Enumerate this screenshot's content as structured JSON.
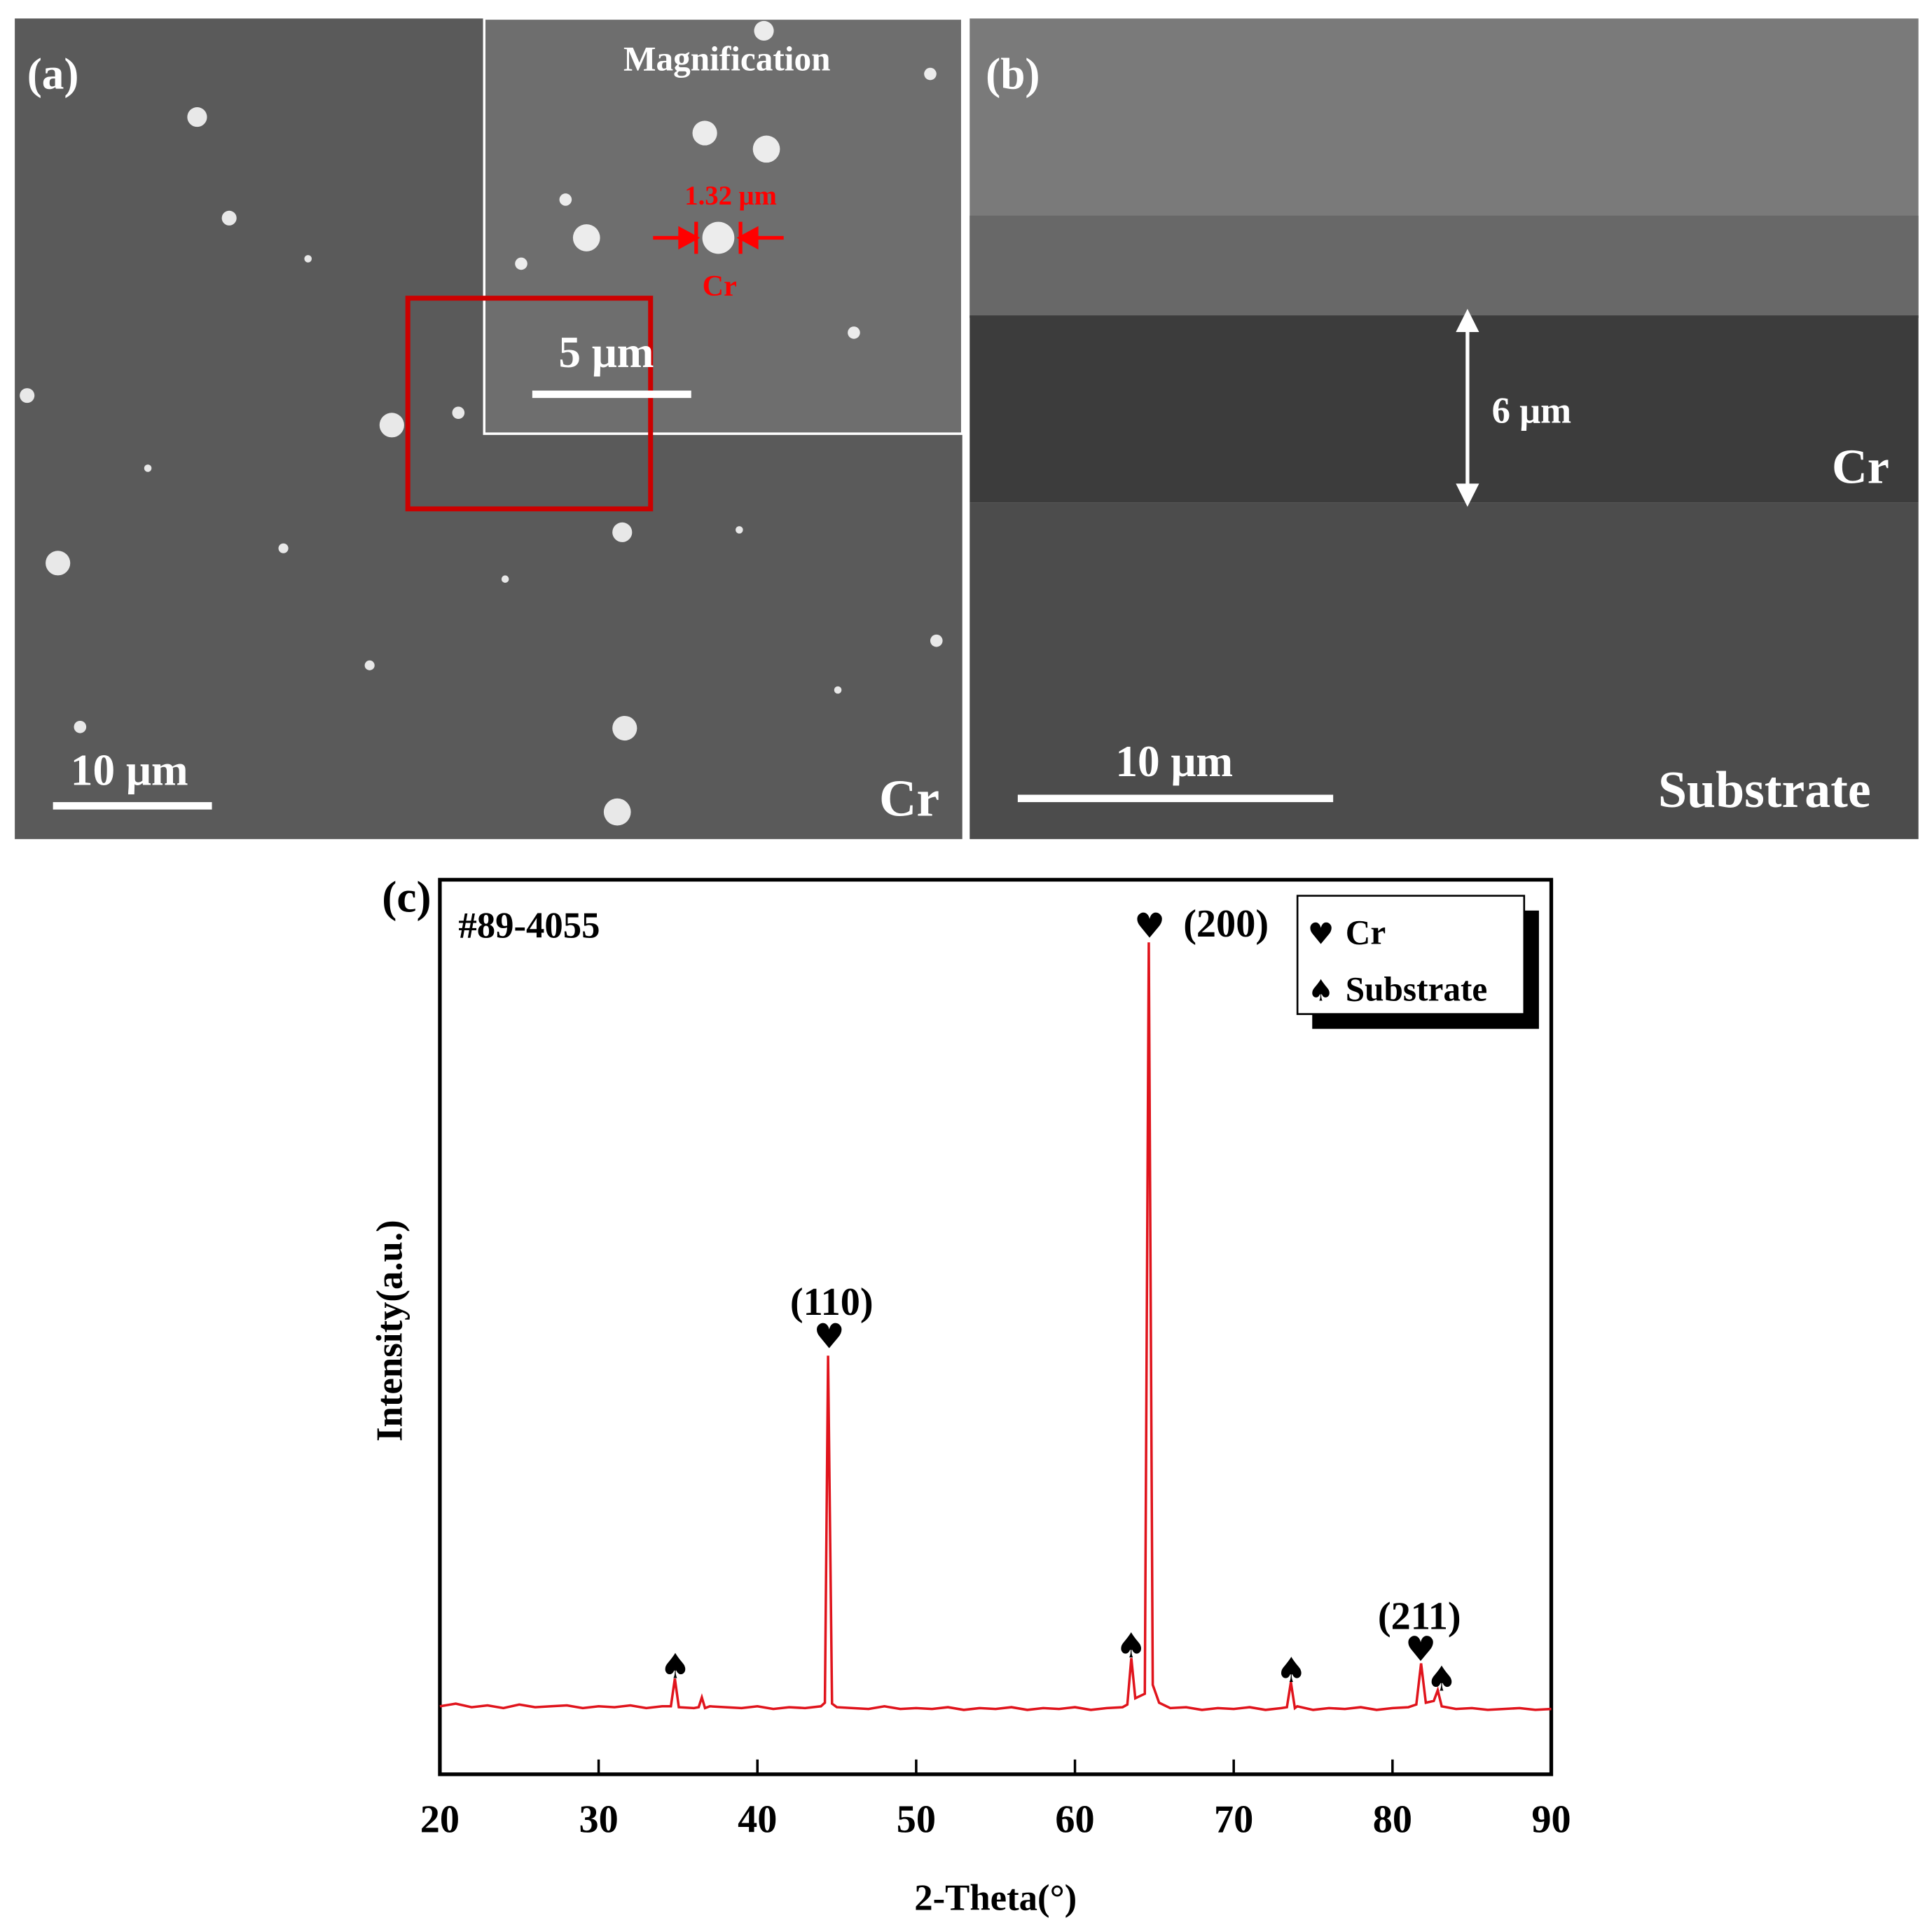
{
  "panels": {
    "a": {
      "label": "(a)",
      "inset_title": "Magnification",
      "inset_size": "1.32 μm",
      "inset_particle": "Cr",
      "inset_scale": "5 μm",
      "scale": "10 μm",
      "layer": "Cr"
    },
    "b": {
      "label": "(b)",
      "thickness": "6 μm",
      "layer": "Cr",
      "scale": "10 μm",
      "substrate": "Substrate"
    }
  },
  "chart_data": {
    "type": "line",
    "panel_label": "(c)",
    "note": "#89-4055",
    "xlabel": "2-Theta(°)",
    "ylabel": "Intensity(a.u.)",
    "color": "#e0141c",
    "xlim": [
      20,
      90
    ],
    "xticks": [
      20,
      30,
      40,
      50,
      60,
      70,
      80,
      90
    ],
    "ylim": [
      0,
      100
    ],
    "x": [
      20,
      21,
      22,
      23,
      24,
      25,
      26,
      27,
      28,
      29,
      30,
      31,
      32,
      33,
      34,
      34.55,
      34.8,
      35.05,
      36,
      36.3,
      36.5,
      36.7,
      37,
      38,
      39,
      40,
      41,
      42,
      43,
      44,
      44.25,
      44.45,
      44.7,
      45,
      46,
      47,
      48,
      49,
      50,
      51,
      52,
      53,
      54,
      55,
      56,
      57,
      58,
      59,
      60,
      61,
      62,
      63,
      63.3,
      63.55,
      63.8,
      64.4,
      64.65,
      64.9,
      65.3,
      66,
      67,
      68,
      69,
      70,
      71,
      72,
      73,
      73.35,
      73.6,
      73.85,
      74,
      75,
      76,
      77,
      78,
      79,
      80,
      81,
      81.5,
      81.8,
      82.1,
      82.6,
      82.85,
      83.1,
      84,
      85,
      86,
      87,
      88,
      89,
      90
    ],
    "values": [
      7.6,
      7.9,
      7.5,
      7.7,
      7.4,
      7.8,
      7.5,
      7.6,
      7.7,
      7.4,
      7.6,
      7.5,
      7.7,
      7.4,
      7.6,
      7.6,
      10.7,
      7.5,
      7.4,
      7.5,
      8.6,
      7.4,
      7.6,
      7.5,
      7.4,
      7.6,
      7.3,
      7.5,
      7.4,
      7.6,
      8.0,
      46.8,
      7.9,
      7.5,
      7.4,
      7.3,
      7.6,
      7.3,
      7.4,
      7.3,
      7.5,
      7.2,
      7.4,
      7.3,
      7.5,
      7.2,
      7.4,
      7.3,
      7.5,
      7.2,
      7.4,
      7.5,
      7.8,
      13.0,
      8.5,
      9.0,
      93.0,
      10.0,
      8.0,
      7.4,
      7.5,
      7.2,
      7.4,
      7.3,
      7.5,
      7.2,
      7.4,
      7.5,
      10.3,
      7.4,
      7.6,
      7.2,
      7.4,
      7.3,
      7.5,
      7.2,
      7.4,
      7.5,
      7.8,
      12.4,
      8.0,
      8.2,
      9.4,
      7.6,
      7.3,
      7.4,
      7.2,
      7.3,
      7.4,
      7.2,
      7.3
    ],
    "peak_labels": [
      "(110)",
      "(200)",
      "(211)"
    ],
    "peak_markers": [
      "♠",
      "♥",
      "♠",
      "♥",
      "♠",
      "♥",
      "♠"
    ],
    "legend": [
      {
        "symbol": "♥",
        "label": "Cr"
      },
      {
        "symbol": "♠",
        "label": "Substrate"
      }
    ]
  }
}
